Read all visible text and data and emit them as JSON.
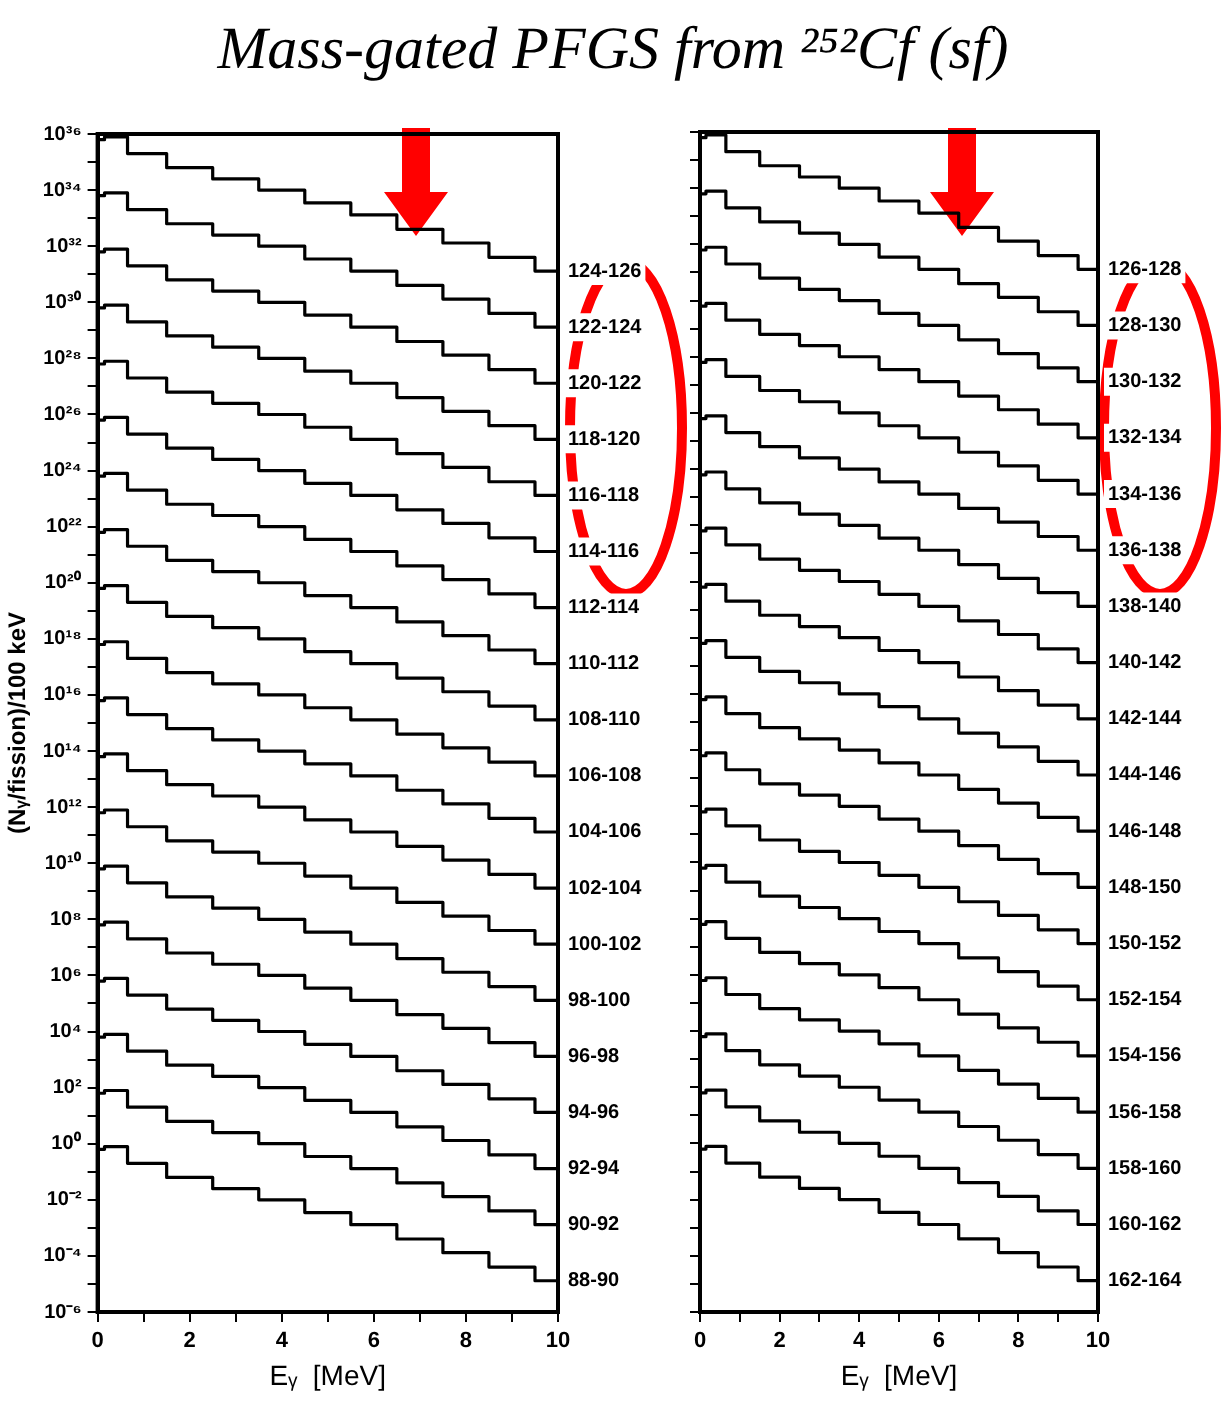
{
  "chart_data": [
    {
      "type": "step",
      "title": "Mass-gated PFGS from ²⁵²Cf (sf)",
      "xlabel": "Eᵧ  [MeV]",
      "ylabel": "(Nᵧ/fission)/100 keV",
      "log": "y",
      "x": [
        0,
        0.3,
        1,
        2,
        3,
        4,
        5,
        6,
        7,
        8,
        9,
        10
      ],
      "xlim": [
        0,
        10
      ],
      "xticks": [
        0,
        {
          "value": 1,
          "label": null
        },
        2,
        {
          "value": 3,
          "label": null
        },
        4,
        {
          "value": 5,
          "label": null
        },
        6,
        {
          "value": 7,
          "label": null
        },
        8,
        {
          "value": 9,
          "label": null
        },
        10
      ],
      "ylim": [
        1e-06,
        1e+36
      ],
      "yticks": [
        {
          "value": 1e-06,
          "label": "10⁻⁶"
        },
        {
          "value": 1e-05,
          "label": null
        },
        {
          "value": 0.0001,
          "label": "10⁻⁴"
        },
        {
          "value": 0.001,
          "label": null
        },
        {
          "value": 0.01,
          "label": "10⁻²"
        },
        {
          "value": 0.1,
          "label": null
        },
        {
          "value": 1,
          "label": "10⁰"
        },
        {
          "value": 10.0,
          "label": null
        },
        {
          "value": 100.0,
          "label": "10²"
        },
        {
          "value": 1000.0,
          "label": null
        },
        {
          "value": 10000.0,
          "label": "10⁴"
        },
        {
          "value": 100000.0,
          "label": null
        },
        {
          "value": 1000000.0,
          "label": "10⁶"
        },
        {
          "value": 10000000.0,
          "label": null
        },
        {
          "value": 100000000.0,
          "label": "10⁸"
        },
        {
          "value": 1000000000.0,
          "label": null
        },
        {
          "value": 10000000000.0,
          "label": "10¹⁰"
        },
        {
          "value": 100000000000.0,
          "label": null
        },
        {
          "value": 1000000000000.0,
          "label": "10¹²"
        },
        {
          "value": 10000000000000.0,
          "label": null
        },
        {
          "value": 100000000000000.0,
          "label": "10¹⁴"
        },
        {
          "value": 1000000000000000.0,
          "label": null
        },
        {
          "value": 1e+16,
          "label": "10¹⁶"
        },
        {
          "value": 1e+17,
          "label": null
        },
        {
          "value": 1e+18,
          "label": "10¹⁸"
        },
        {
          "value": 1e+19,
          "label": null
        },
        {
          "value": 1e+20,
          "label": "10²⁰"
        },
        {
          "value": 1e+21,
          "label": null
        },
        {
          "value": 1e+22,
          "label": "10²²"
        },
        {
          "value": 1e+23,
          "label": null
        },
        {
          "value": 1e+24,
          "label": "10²⁴"
        },
        {
          "value": 1e+25,
          "label": null
        },
        {
          "value": 1e+26,
          "label": "10²⁶"
        },
        {
          "value": 1e+27,
          "label": null
        },
        {
          "value": 1e+28,
          "label": "10²⁸"
        },
        {
          "value": 1e+29,
          "label": null
        },
        {
          "value": 1e+30,
          "label": "10³⁰"
        },
        {
          "value": 1e+31,
          "label": null
        },
        {
          "value": 1e+32,
          "label": "10³²"
        },
        {
          "value": 1e+33,
          "label": null
        },
        {
          "value": 1e+34,
          "label": "10³⁴"
        },
        {
          "value": 1e+35,
          "label": null
        },
        {
          "value": 1e+36,
          "label": "10³⁶"
        }
      ],
      "series": [
        {
          "name": "88-90",
          "color": "#000000",
          "values": [
            0.63,
            0.79,
            0.2,
            0.063,
            0.025,
            0.01,
            0.0035,
            0.0013,
            0.0004,
            0.00013,
            4e-05,
            1.3e-05
          ]
        },
        {
          "name": "90-92",
          "color": "#000000",
          "values": [
            63.0,
            79.0,
            20.0,
            6.3,
            2.5,
            1.0,
            0.35,
            0.13,
            0.04,
            0.013,
            0.004,
            0.0013
          ]
        },
        {
          "name": "92-94",
          "color": "#000000",
          "values": [
            6300.0,
            7900.0,
            2000.0,
            630.0,
            250.0,
            100.0,
            35.0,
            13.0,
            4.0,
            1.3,
            0.4,
            0.13
          ]
        },
        {
          "name": "94-96",
          "color": "#000000",
          "values": [
            630000.0,
            790000.0,
            200000.0,
            63000.0,
            25000.0,
            10000.0,
            3500.0,
            1300.0,
            400.0,
            130.0,
            40.0,
            13.0
          ]
        },
        {
          "name": "96-98",
          "color": "#000000",
          "values": [
            63000000.0,
            79000000.0,
            20000000.0,
            6300000.0,
            2500000.0,
            1000000.0,
            350000.0,
            130000.0,
            40000.0,
            13000.0,
            4000.0,
            1300.0
          ]
        },
        {
          "name": "98-100",
          "color": "#000000",
          "values": [
            6300000000.0,
            7900000000.0,
            2000000000.0,
            630000000.0,
            250000000.0,
            100000000.0,
            35000000.0,
            13000000.0,
            4000000.0,
            1300000.0,
            400000.0,
            130000.0
          ]
        },
        {
          "name": "100-102",
          "color": "#000000",
          "values": [
            630000000000.0,
            790000000000.0,
            200000000000.0,
            63000000000.0,
            25000000000.0,
            10000000000.0,
            3500000000.0,
            1300000000.0,
            400000000.0,
            130000000.0,
            40000000.0,
            13000000.0
          ]
        },
        {
          "name": "102-104",
          "color": "#000000",
          "values": [
            63000000000000.0,
            79000000000000.0,
            20000000000000.0,
            6300000000000.0,
            2500000000000.0,
            1000000000000.0,
            350000000000.0,
            130000000000.0,
            40000000000.0,
            13000000000.0,
            4000000000.0,
            1300000000.0
          ]
        },
        {
          "name": "104-106",
          "color": "#000000",
          "values": [
            6300000000000000.0,
            7900000000000000.0,
            2000000000000000.0,
            630000000000000.0,
            250000000000000.0,
            100000000000000.0,
            35000000000000.0,
            13000000000000.0,
            4000000000000.0,
            1300000000000.0,
            400000000000.0,
            130000000000.0
          ]
        },
        {
          "name": "106-108",
          "color": "#000000",
          "values": [
            6.3e+17,
            7.9e+17,
            2e+17,
            6.3e+16,
            2.5e+16,
            1e+16,
            3500000000000000.0,
            1300000000000000.0,
            400000000000000.0,
            130000000000000.0,
            40000000000000.0,
            13000000000000.0
          ]
        },
        {
          "name": "108-110",
          "color": "#000000",
          "values": [
            6.3e+19,
            7.9e+19,
            2e+19,
            6.3e+18,
            2.5e+18,
            1e+18,
            3.5e+17,
            1.3e+17,
            4e+16,
            1.3e+16,
            4000000000000000.0,
            1300000000000000.0
          ]
        },
        {
          "name": "110-112",
          "color": "#000000",
          "values": [
            6.3e+21,
            7.9e+21,
            2e+21,
            6.3e+20,
            2.5e+20,
            1e+20,
            3.5e+19,
            1.3e+19,
            4e+18,
            1.3e+18,
            4e+17,
            1.3e+17
          ]
        },
        {
          "name": "112-114",
          "color": "#000000",
          "values": [
            6.3e+23,
            7.9e+23,
            2e+23,
            6.3e+22,
            2.5e+22,
            1e+22,
            3.5e+21,
            1.3e+21,
            4e+20,
            1.3e+20,
            4e+19,
            1.3e+19
          ]
        },
        {
          "name": "114-116",
          "color": "#000000",
          "values": [
            6.3e+25,
            7.9e+25,
            2e+25,
            6.3e+24,
            2.5e+24,
            1e+24,
            3.5e+23,
            1.3e+23,
            4e+22,
            1.3e+22,
            4e+21,
            1.3e+21
          ]
        },
        {
          "name": "116-118",
          "color": "#000000",
          "values": [
            6.3e+27,
            7.9e+27,
            2e+27,
            6.3e+26,
            2.5e+26,
            1e+26,
            3.5e+25,
            1.3e+25,
            4e+24,
            1.3e+24,
            4e+23,
            1.3e+23
          ]
        },
        {
          "name": "118-120",
          "color": "#000000",
          "values": [
            6.3e+29,
            7.9e+29,
            2e+29,
            6.3e+28,
            2.5e+28,
            1e+28,
            3.5e+27,
            1.3e+27,
            4e+26,
            1.3e+26,
            4e+25,
            1.3e+25
          ]
        },
        {
          "name": "120-122",
          "color": "#000000",
          "values": [
            6.3e+31,
            7.9e+31,
            2e+31,
            6.3e+30,
            2.5e+30,
            1e+30,
            3.5e+29,
            1.3e+29,
            4e+28,
            1.3e+28,
            4e+27,
            1.3e+27
          ]
        },
        {
          "name": "122-124",
          "color": "#000000",
          "values": [
            6.3e+33,
            7.9e+33,
            2e+33,
            6.3e+32,
            2.5e+32,
            1e+32,
            3.5e+31,
            1.3e+31,
            4e+30,
            1.3e+30,
            4e+29,
            1.3e+29
          ]
        },
        {
          "name": "124-126",
          "color": "#000000",
          "values": [
            6.3e+35,
            7.9e+35,
            2e+35,
            6.3e+34,
            2.5e+34,
            1e+34,
            3.5e+33,
            1.3e+33,
            4e+32,
            1.3e+32,
            4e+31,
            1.3e+31
          ]
        }
      ]
    },
    {
      "type": "step",
      "xlabel": "Eᵧ  [MeV]",
      "log": "y",
      "tick_labels": "x",
      "x": [
        0,
        0.3,
        1,
        2,
        3,
        4,
        5,
        6,
        7,
        8,
        9,
        10
      ],
      "xlim": [
        0,
        10
      ],
      "xticks": [
        0,
        {
          "value": 1,
          "label": null
        },
        2,
        {
          "value": 3,
          "label": null
        },
        4,
        {
          "value": 5,
          "label": null
        },
        6,
        {
          "value": 7,
          "label": null
        },
        8,
        {
          "value": 9,
          "label": null
        },
        10
      ],
      "ylim": [
        1e-06,
        1e+36
      ],
      "yticks": [
        {
          "value": 1e-06,
          "label": null
        },
        {
          "value": 1e-05,
          "label": null
        },
        {
          "value": 0.0001,
          "label": null
        },
        {
          "value": 0.001,
          "label": null
        },
        {
          "value": 0.01,
          "label": null
        },
        {
          "value": 0.1,
          "label": null
        },
        {
          "value": 1,
          "label": null
        },
        {
          "value": 10.0,
          "label": null
        },
        {
          "value": 100.0,
          "label": null
        },
        {
          "value": 1000.0,
          "label": null
        },
        {
          "value": 10000.0,
          "label": null
        },
        {
          "value": 100000.0,
          "label": null
        },
        {
          "value": 1000000.0,
          "label": null
        },
        {
          "value": 10000000.0,
          "label": null
        },
        {
          "value": 100000000.0,
          "label": null
        },
        {
          "value": 1000000000.0,
          "label": null
        },
        {
          "value": 10000000000.0,
          "label": null
        },
        {
          "value": 100000000000.0,
          "label": null
        },
        {
          "value": 1000000000000.0,
          "label": null
        },
        {
          "value": 10000000000000.0,
          "label": null
        },
        {
          "value": 100000000000000.0,
          "label": null
        },
        {
          "value": 1000000000000000.0,
          "label": null
        },
        {
          "value": 1e+16,
          "label": null
        },
        {
          "value": 1e+17,
          "label": null
        },
        {
          "value": 1e+18,
          "label": null
        },
        {
          "value": 1e+19,
          "label": null
        },
        {
          "value": 1e+20,
          "label": null
        },
        {
          "value": 1e+21,
          "label": null
        },
        {
          "value": 1e+22,
          "label": null
        },
        {
          "value": 1e+23,
          "label": null
        },
        {
          "value": 1e+24,
          "label": null
        },
        {
          "value": 1e+25,
          "label": null
        },
        {
          "value": 1e+26,
          "label": null
        },
        {
          "value": 1e+27,
          "label": null
        },
        {
          "value": 1e+28,
          "label": null
        },
        {
          "value": 1e+29,
          "label": null
        },
        {
          "value": 1e+30,
          "label": null
        },
        {
          "value": 1e+31,
          "label": null
        },
        {
          "value": 1e+32,
          "label": null
        },
        {
          "value": 1e+33,
          "label": null
        },
        {
          "value": 1e+34,
          "label": null
        },
        {
          "value": 1e+35,
          "label": null
        },
        {
          "value": 1e+36,
          "label": null
        }
      ],
      "series": [
        {
          "name": "162-164",
          "color": "#000000",
          "values": [
            0.63,
            0.79,
            0.2,
            0.063,
            0.025,
            0.01,
            0.0035,
            0.0013,
            0.0004,
            0.00013,
            4e-05,
            1.3e-05
          ]
        },
        {
          "name": "160-162",
          "color": "#000000",
          "values": [
            63.0,
            79.0,
            20.0,
            6.3,
            2.5,
            1.0,
            0.35,
            0.13,
            0.04,
            0.013,
            0.004,
            0.0013
          ]
        },
        {
          "name": "158-160",
          "color": "#000000",
          "values": [
            6300.0,
            7900.0,
            2000.0,
            630.0,
            250.0,
            100.0,
            35.0,
            13.0,
            4.0,
            1.3,
            0.4,
            0.13
          ]
        },
        {
          "name": "156-158",
          "color": "#000000",
          "values": [
            630000.0,
            790000.0,
            200000.0,
            63000.0,
            25000.0,
            10000.0,
            3500.0,
            1300.0,
            400.0,
            130.0,
            40.0,
            13.0
          ]
        },
        {
          "name": "154-156",
          "color": "#000000",
          "values": [
            63000000.0,
            79000000.0,
            20000000.0,
            6300000.0,
            2500000.0,
            1000000.0,
            350000.0,
            130000.0,
            40000.0,
            13000.0,
            4000.0,
            1300.0
          ]
        },
        {
          "name": "152-154",
          "color": "#000000",
          "values": [
            6300000000.0,
            7900000000.0,
            2000000000.0,
            630000000.0,
            250000000.0,
            100000000.0,
            35000000.0,
            13000000.0,
            4000000.0,
            1300000.0,
            400000.0,
            130000.0
          ]
        },
        {
          "name": "150-152",
          "color": "#000000",
          "values": [
            630000000000.0,
            790000000000.0,
            200000000000.0,
            63000000000.0,
            25000000000.0,
            10000000000.0,
            3500000000.0,
            1300000000.0,
            400000000.0,
            130000000.0,
            40000000.0,
            13000000.0
          ]
        },
        {
          "name": "148-150",
          "color": "#000000",
          "values": [
            63000000000000.0,
            79000000000000.0,
            20000000000000.0,
            6300000000000.0,
            2500000000000.0,
            1000000000000.0,
            350000000000.0,
            130000000000.0,
            40000000000.0,
            13000000000.0,
            4000000000.0,
            1300000000.0
          ]
        },
        {
          "name": "146-148",
          "color": "#000000",
          "values": [
            6300000000000000.0,
            7900000000000000.0,
            2000000000000000.0,
            630000000000000.0,
            250000000000000.0,
            100000000000000.0,
            35000000000000.0,
            13000000000000.0,
            4000000000000.0,
            1300000000000.0,
            400000000000.0,
            130000000000.0
          ]
        },
        {
          "name": "144-146",
          "color": "#000000",
          "values": [
            6.3e+17,
            7.9e+17,
            2e+17,
            6.3e+16,
            2.5e+16,
            1e+16,
            3500000000000000.0,
            1300000000000000.0,
            400000000000000.0,
            130000000000000.0,
            40000000000000.0,
            13000000000000.0
          ]
        },
        {
          "name": "142-144",
          "color": "#000000",
          "values": [
            6.3e+19,
            7.9e+19,
            2e+19,
            6.3e+18,
            2.5e+18,
            1e+18,
            3.5e+17,
            1.3e+17,
            4e+16,
            1.3e+16,
            4000000000000000.0,
            1300000000000000.0
          ]
        },
        {
          "name": "140-142",
          "color": "#000000",
          "values": [
            6.3e+21,
            7.9e+21,
            2e+21,
            6.3e+20,
            2.5e+20,
            1e+20,
            3.5e+19,
            1.3e+19,
            4e+18,
            1.3e+18,
            4e+17,
            1.3e+17
          ]
        },
        {
          "name": "138-140",
          "color": "#000000",
          "values": [
            6.3e+23,
            7.9e+23,
            2e+23,
            6.3e+22,
            2.5e+22,
            1e+22,
            3.5e+21,
            1.3e+21,
            4e+20,
            1.3e+20,
            4e+19,
            1.3e+19
          ]
        },
        {
          "name": "136-138",
          "color": "#000000",
          "values": [
            6.3e+25,
            7.9e+25,
            2e+25,
            6.3e+24,
            2.5e+24,
            1e+24,
            3.5e+23,
            1.3e+23,
            4e+22,
            1.3e+22,
            4e+21,
            1.3e+21
          ]
        },
        {
          "name": "134-136",
          "color": "#000000",
          "values": [
            6.3e+27,
            7.9e+27,
            2e+27,
            6.3e+26,
            2.5e+26,
            1e+26,
            3.5e+25,
            1.3e+25,
            4e+24,
            1.3e+24,
            4e+23,
            1.3e+23
          ]
        },
        {
          "name": "132-134",
          "color": "#000000",
          "values": [
            6.3e+29,
            7.9e+29,
            2e+29,
            6.3e+28,
            2.5e+28,
            1e+28,
            3.5e+27,
            1.3e+27,
            4e+26,
            1.3e+26,
            4e+25,
            1.3e+25
          ]
        },
        {
          "name": "130-132",
          "color": "#000000",
          "values": [
            6.3e+31,
            7.9e+31,
            2e+31,
            6.3e+30,
            2.5e+30,
            1e+30,
            3.5e+29,
            1.3e+29,
            4e+28,
            1.3e+28,
            4e+27,
            1.3e+27
          ]
        },
        {
          "name": "128-130",
          "color": "#000000",
          "values": [
            6.3e+33,
            7.9e+33,
            2e+33,
            6.3e+32,
            2.5e+32,
            1e+32,
            3.5e+31,
            1.3e+31,
            4e+30,
            1.3e+30,
            4e+29,
            1.3e+29
          ]
        },
        {
          "name": "126-128",
          "color": "#000000",
          "values": [
            6.3e+35,
            7.9e+35,
            2e+35,
            6.3e+34,
            2.5e+34,
            1e+34,
            3.5e+33,
            1.3e+33,
            4e+32,
            1.3e+32,
            4e+31,
            1.3e+31
          ]
        }
      ]
    }
  ]
}
